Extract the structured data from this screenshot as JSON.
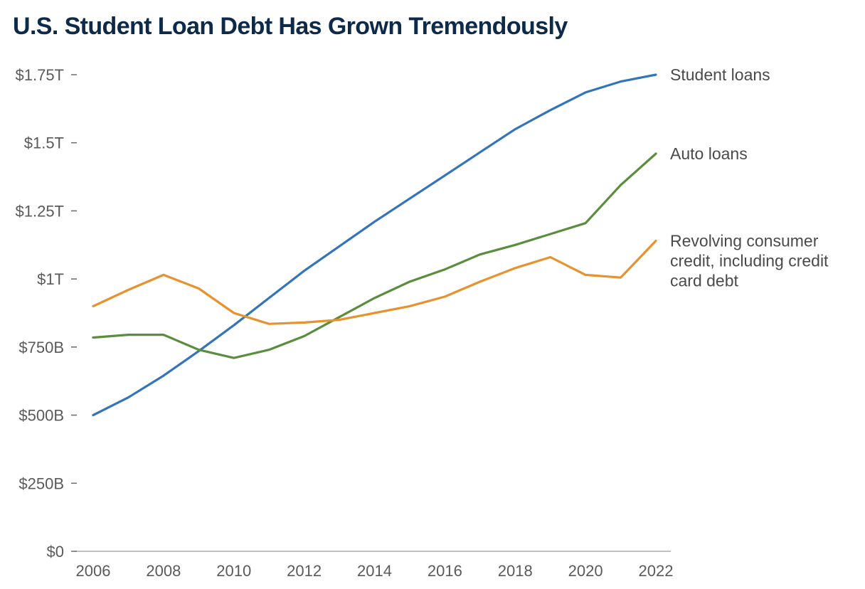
{
  "title": "U.S. Student Loan Debt Has Grown Tremendously",
  "colors": {
    "student_loans": "#3474b8",
    "auto_loans": "#5b8d3e",
    "revolving_credit": "#e8922e",
    "axis": "#9a9a9a",
    "title": "#0d2a4a",
    "text": "#5a5a5a"
  },
  "chart_data": {
    "type": "line",
    "title": "U.S. Student Loan Debt Has Grown Tremendously",
    "xlabel": "",
    "ylabel": "",
    "x": [
      2006,
      2007,
      2008,
      2009,
      2010,
      2011,
      2012,
      2013,
      2014,
      2015,
      2016,
      2017,
      2018,
      2019,
      2020,
      2021,
      2022
    ],
    "xlim": [
      2006,
      2022
    ],
    "ylim": [
      0,
      1750
    ],
    "y_unit": "billions of dollars",
    "x_ticks": [
      {
        "value": 2006,
        "label": "2006"
      },
      {
        "value": 2008,
        "label": "2008"
      },
      {
        "value": 2010,
        "label": "2010"
      },
      {
        "value": 2012,
        "label": "2012"
      },
      {
        "value": 2014,
        "label": "2014"
      },
      {
        "value": 2016,
        "label": "2016"
      },
      {
        "value": 2018,
        "label": "2018"
      },
      {
        "value": 2020,
        "label": "2020"
      },
      {
        "value": 2022,
        "label": "2022"
      }
    ],
    "y_ticks": [
      {
        "value": 0,
        "label": "$0"
      },
      {
        "value": 250,
        "label": "$250B"
      },
      {
        "value": 500,
        "label": "$500B"
      },
      {
        "value": 750,
        "label": "$750B"
      },
      {
        "value": 1000,
        "label": "$1T"
      },
      {
        "value": 1250,
        "label": "$1.25T"
      },
      {
        "value": 1500,
        "label": "$1.5T"
      },
      {
        "value": 1750,
        "label": "$1.75T"
      }
    ],
    "grid": false,
    "legend": "direct labels at right end of lines",
    "series": [
      {
        "key": "student_loans",
        "name": "Student loans",
        "label_lines": [
          "Student loans"
        ],
        "color": "#3474b8",
        "values": [
          500,
          565,
          645,
          735,
          830,
          930,
          1030,
          1120,
          1210,
          1295,
          1380,
          1465,
          1550,
          1620,
          1685,
          1725,
          1750
        ]
      },
      {
        "key": "auto_loans",
        "name": "Auto loans",
        "label_lines": [
          "Auto loans"
        ],
        "color": "#5b8d3e",
        "values": [
          785,
          795,
          795,
          740,
          710,
          740,
          790,
          860,
          930,
          990,
          1035,
          1090,
          1125,
          1165,
          1205,
          1345,
          1460
        ]
      },
      {
        "key": "revolving_credit",
        "name": "Revolving consumer credit, including credit card debt",
        "label_lines": [
          "Revolving consumer",
          "credit, including credit",
          "card debt"
        ],
        "color": "#e8922e",
        "values": [
          900,
          960,
          1015,
          965,
          875,
          835,
          840,
          850,
          875,
          900,
          935,
          990,
          1040,
          1080,
          1015,
          1005,
          1140
        ]
      }
    ]
  }
}
